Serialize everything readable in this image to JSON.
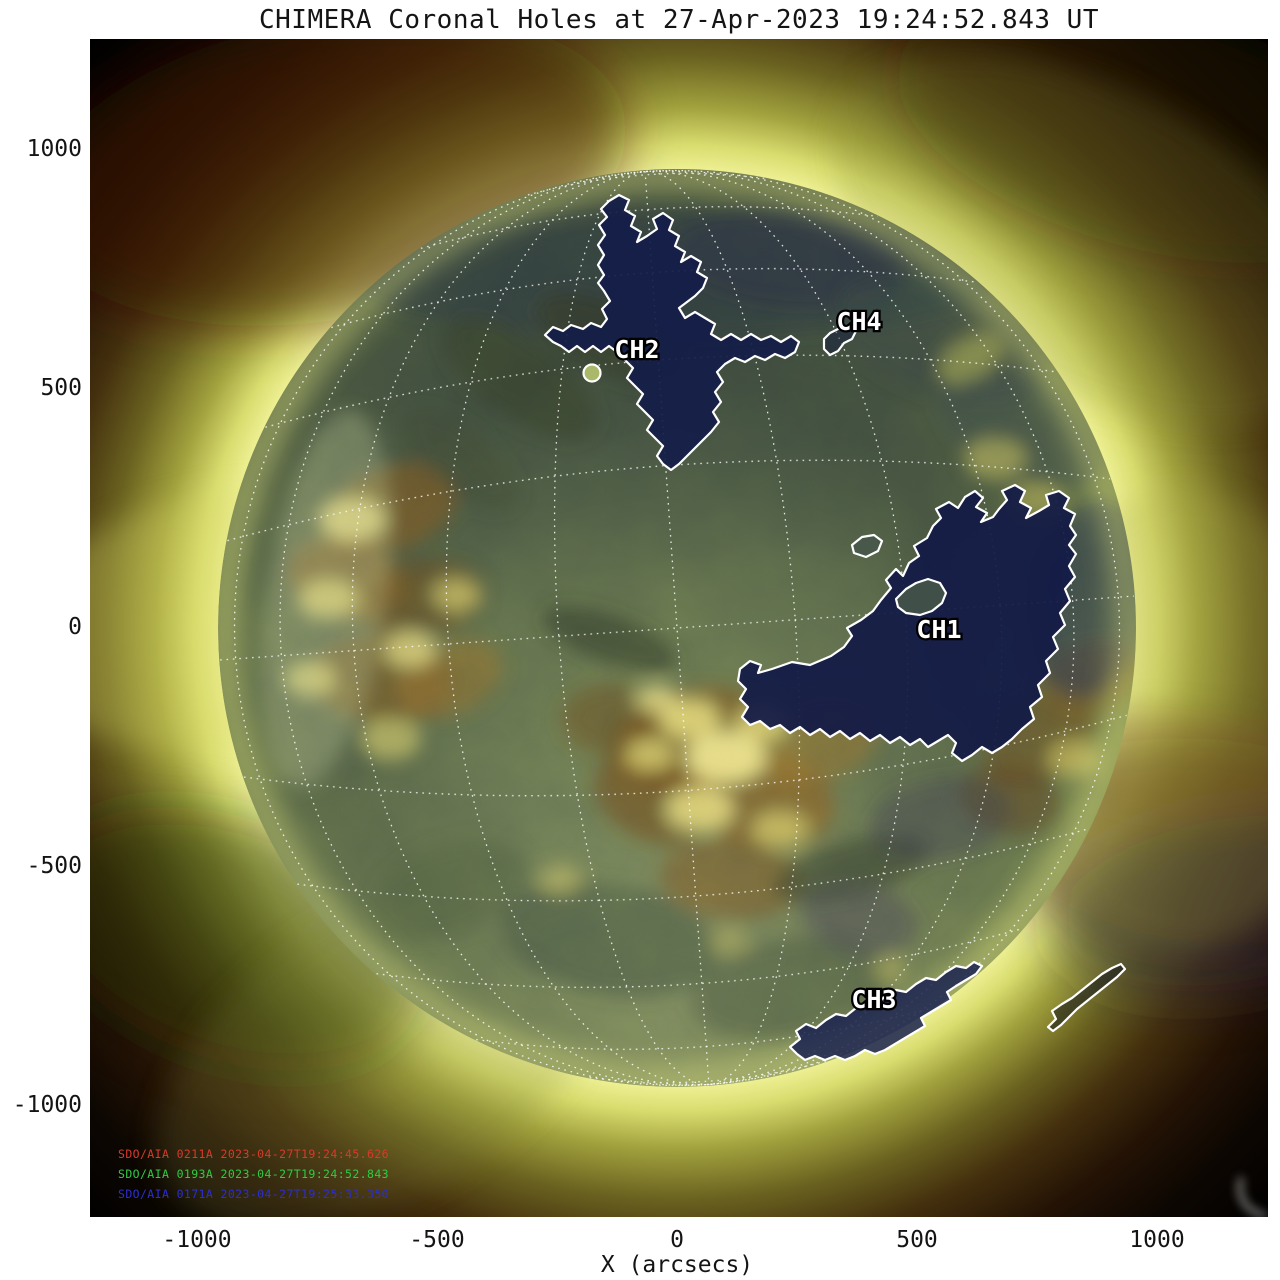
{
  "title": "CHIMERA Coronal Holes at 27-Apr-2023 19:24:52.843 UT",
  "axes": {
    "x_label": "X (arcsecs)",
    "x_ticks": [
      "-1000",
      "-500",
      "0",
      "500",
      "1000"
    ],
    "y_ticks": [
      "1000",
      "500",
      "0",
      "-500",
      "-1000"
    ]
  },
  "coronal_holes": [
    {
      "label": "CH1",
      "x_arcsec": 560,
      "y_arcsec": -10
    },
    {
      "label": "CH2",
      "x_arcsec": -85,
      "y_arcsec": 580
    },
    {
      "label": "CH3",
      "x_arcsec": 410,
      "y_arcsec": -775
    },
    {
      "label": "CH4",
      "x_arcsec": 370,
      "y_arcsec": 635
    }
  ],
  "credits": [
    {
      "text": "SDO/AIA 0211A 2023-04-27T19:24:45.626",
      "color": "#d93a2b"
    },
    {
      "text": "SDO/AIA 0193A 2023-04-27T19:24:52.843",
      "color": "#2ecc45"
    },
    {
      "text": "SDO/AIA 0171A 2023-04-27T19:25:33.350",
      "color": "#2d2dd6"
    }
  ],
  "chart_data": {
    "type": "heatmap",
    "title": "CHIMERA Coronal Holes at 27-Apr-2023 19:24:52.843 UT",
    "xlabel": "X (arcsecs)",
    "ylabel": "",
    "xlim": [
      -1225,
      1225
    ],
    "ylim": [
      -1225,
      1225
    ],
    "grid": "heliographic grid, 15 degree spacing, white dotted, on",
    "legend_position": "none",
    "description": "Full-disk tricolor SDO/AIA EUV composite (211/193/171 A mapped to R/G/B) with CHIMERA coronal hole boundary contours overplotted in white; coronal holes appear as dark blue regions",
    "solar_disk": {
      "center_arcsec": [
        0,
        0
      ],
      "radius_arcsec": 955
    },
    "annotations": [
      {
        "label": "CH1",
        "x_arcsec": 560,
        "y_arcsec": -10,
        "extent": "large hole east of disk center"
      },
      {
        "label": "CH2",
        "x_arcsec": -85,
        "y_arcsec": 580,
        "extent": "hole extending from north polar region to mid latitudes"
      },
      {
        "label": "CH3",
        "x_arcsec": 410,
        "y_arcsec": -775,
        "extent": "elongated hole near southeast limb"
      },
      {
        "label": "CH4",
        "x_arcsec": 370,
        "y_arcsec": 635,
        "extent": "small hole northeast of disk center"
      },
      {
        "label": "",
        "x_arcsec": 850,
        "y_arcsec": -720,
        "extent": "small unlabeled contour beyond southeast limb"
      }
    ]
  }
}
